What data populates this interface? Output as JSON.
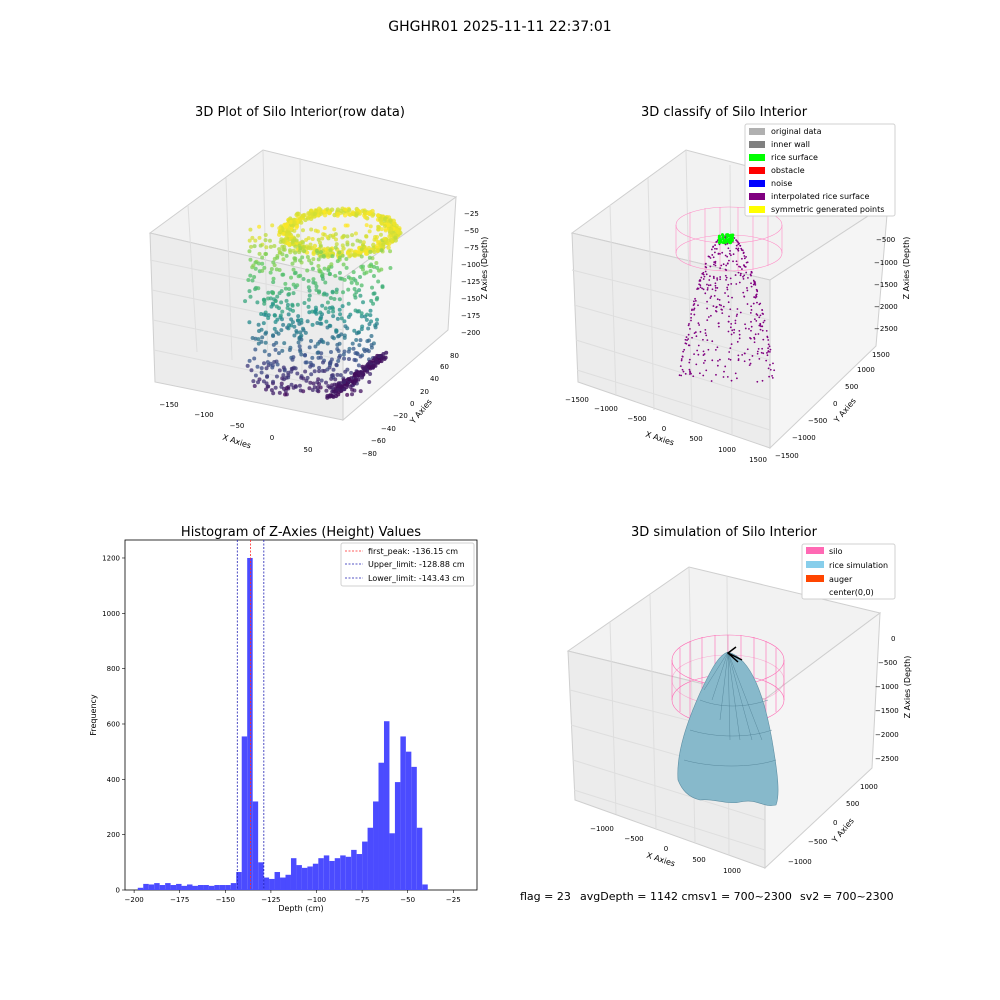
{
  "figure": {
    "suptitle": "GHGHR01 2025-11-11 22:37:01",
    "status_line": {
      "flag": "flag = 23",
      "avg_depth": "avgDepth = 1142 cmsv1 = 700~2300",
      "sv2": "sv2 = 700~2300"
    }
  },
  "colors": {
    "histogram_bar": "#4b4bff",
    "peak_line": "#ff2a2a",
    "limit_line": "#1f1fb4",
    "silo_pink": "#ff69b4",
    "rice_surface_green": "#00ff00",
    "interp_purple": "#800080",
    "rice_sim": "#87ceeb",
    "auger": "#ff4500"
  },
  "chart_data": [
    {
      "type": "scatter3d",
      "title": "3D Plot of Silo Interior(row data)",
      "xlabel": "X Axies",
      "ylabel": "Y Axies",
      "zlabel": "Z Axies (Depth)",
      "x_ticks": [
        "−150",
        "−100",
        "−50",
        "0",
        "50"
      ],
      "y_ticks": [
        "−80",
        "−60",
        "−40",
        "−20",
        "0",
        "20",
        "40",
        "60",
        "80"
      ],
      "z_ticks": [
        "−25",
        "−50",
        "−75",
        "−100",
        "−125",
        "−150",
        "−175",
        "−200"
      ],
      "colormap": "viridis"
    },
    {
      "type": "scatter3d",
      "title": "3D classify of Silo Interior",
      "xlabel": "X Axies",
      "ylabel": "Y Axies",
      "zlabel": "Z Axies (Depth)",
      "x_ticks": [
        "−1500",
        "−1000",
        "−500",
        "0",
        "500",
        "1000",
        "1500"
      ],
      "y_ticks": [
        "−1500",
        "−1000",
        "−500",
        "0",
        "500",
        "1000",
        "1500"
      ],
      "z_ticks": [
        "−500",
        "−1000",
        "−1500",
        "−2000",
        "−2500"
      ],
      "legend": [
        {
          "label": "original data",
          "color": "#b0b0b0"
        },
        {
          "label": "inner wall",
          "color": "#808080"
        },
        {
          "label": "rice surface",
          "color": "#00ff00"
        },
        {
          "label": "obstacle",
          "color": "#ff0000"
        },
        {
          "label": "noise",
          "color": "#0000ff"
        },
        {
          "label": "interpolated rice surface",
          "color": "#800080"
        },
        {
          "label": "symmetric generated points",
          "color": "#ffff00"
        }
      ]
    },
    {
      "type": "bar",
      "title": "Histogram of Z-Axies (Height) Values",
      "xlabel": "Depth (cm)",
      "ylabel": "Frequency",
      "xlim": [
        -205,
        -12
      ],
      "ylim": [
        0,
        1265
      ],
      "x_ticks": [
        -200,
        -175,
        -150,
        -125,
        -100,
        -75,
        -50,
        -25
      ],
      "y_ticks": [
        0,
        200,
        400,
        600,
        800,
        1000,
        1200
      ],
      "bins": [
        {
          "x0": -198,
          "x1": -195,
          "y": 8
        },
        {
          "x0": -195,
          "x1": -192,
          "y": 22
        },
        {
          "x0": -192,
          "x1": -189,
          "y": 20
        },
        {
          "x0": -189,
          "x1": -186,
          "y": 25
        },
        {
          "x0": -186,
          "x1": -183,
          "y": 18
        },
        {
          "x0": -183,
          "x1": -180,
          "y": 25
        },
        {
          "x0": -180,
          "x1": -177,
          "y": 18
        },
        {
          "x0": -177,
          "x1": -174,
          "y": 22
        },
        {
          "x0": -174,
          "x1": -171,
          "y": 15
        },
        {
          "x0": -171,
          "x1": -168,
          "y": 20
        },
        {
          "x0": -168,
          "x1": -165,
          "y": 15
        },
        {
          "x0": -165,
          "x1": -162,
          "y": 18
        },
        {
          "x0": -162,
          "x1": -159,
          "y": 18
        },
        {
          "x0": -159,
          "x1": -156,
          "y": 15
        },
        {
          "x0": -156,
          "x1": -153,
          "y": 18
        },
        {
          "x0": -153,
          "x1": -150,
          "y": 18
        },
        {
          "x0": -150,
          "x1": -147,
          "y": 18
        },
        {
          "x0": -147,
          "x1": -144,
          "y": 25
        },
        {
          "x0": -144,
          "x1": -141,
          "y": 65
        },
        {
          "x0": -141,
          "x1": -138,
          "y": 555
        },
        {
          "x0": -138,
          "x1": -135,
          "y": 1200
        },
        {
          "x0": -135,
          "x1": -132,
          "y": 320
        },
        {
          "x0": -132,
          "x1": -129,
          "y": 100
        },
        {
          "x0": -129,
          "x1": -126,
          "y": 45
        },
        {
          "x0": -126,
          "x1": -123,
          "y": 40
        },
        {
          "x0": -123,
          "x1": -120,
          "y": 65
        },
        {
          "x0": -120,
          "x1": -117,
          "y": 45
        },
        {
          "x0": -117,
          "x1": -114,
          "y": 55
        },
        {
          "x0": -114,
          "x1": -111,
          "y": 115
        },
        {
          "x0": -111,
          "x1": -108,
          "y": 90
        },
        {
          "x0": -108,
          "x1": -105,
          "y": 80
        },
        {
          "x0": -105,
          "x1": -102,
          "y": 85
        },
        {
          "x0": -102,
          "x1": -99,
          "y": 95
        },
        {
          "x0": -99,
          "x1": -96,
          "y": 115
        },
        {
          "x0": -96,
          "x1": -93,
          "y": 125
        },
        {
          "x0": -93,
          "x1": -90,
          "y": 105
        },
        {
          "x0": -90,
          "x1": -87,
          "y": 115
        },
        {
          "x0": -87,
          "x1": -84,
          "y": 125
        },
        {
          "x0": -84,
          "x1": -81,
          "y": 120
        },
        {
          "x0": -81,
          "x1": -78,
          "y": 145
        },
        {
          "x0": -78,
          "x1": -75,
          "y": 130
        },
        {
          "x0": -75,
          "x1": -72,
          "y": 175
        },
        {
          "x0": -72,
          "x1": -69,
          "y": 225
        },
        {
          "x0": -69,
          "x1": -66,
          "y": 320
        },
        {
          "x0": -66,
          "x1": -63,
          "y": 460
        },
        {
          "x0": -63,
          "x1": -60,
          "y": 610
        },
        {
          "x0": -60,
          "x1": -57,
          "y": 205
        },
        {
          "x0": -57,
          "x1": -54,
          "y": 390
        },
        {
          "x0": -54,
          "x1": -51,
          "y": 555
        },
        {
          "x0": -51,
          "x1": -48,
          "y": 500
        },
        {
          "x0": -48,
          "x1": -45,
          "y": 445
        },
        {
          "x0": -45,
          "x1": -42,
          "y": 225
        },
        {
          "x0": -42,
          "x1": -39,
          "y": 20
        }
      ],
      "vlines": [
        {
          "x": -136.15,
          "label": "first_peak: -136.15 cm",
          "color": "#ff2a2a"
        },
        {
          "x": -128.88,
          "label": "Upper_limit: -128.88 cm",
          "color": "#1f1fb4"
        },
        {
          "x": -143.43,
          "label": "Lower_limit: -143.43 cm",
          "color": "#1f1fb4"
        }
      ],
      "legend_position": "upper-right",
      "grid": false
    },
    {
      "type": "surface3d",
      "title": "3D simulation of Silo Interior",
      "xlabel": "X Axies",
      "ylabel": "Y Axies",
      "zlabel": "Z Axies (Depth)",
      "x_ticks": [
        "−1000",
        "−500",
        "0",
        "500",
        "1000"
      ],
      "y_ticks": [
        "−1000",
        "−500",
        "0",
        "500",
        "1000"
      ],
      "z_ticks": [
        "0",
        "−500",
        "−1000",
        "−1500",
        "−2000",
        "−2500"
      ],
      "legend": [
        {
          "label": "silo",
          "color": "#ff69b4"
        },
        {
          "label": "rice simulation",
          "color": "#87ceeb"
        },
        {
          "label": "auger",
          "color": "#ff4500"
        },
        {
          "label": "center(0,0)",
          "color": "#ffffff"
        }
      ]
    }
  ]
}
